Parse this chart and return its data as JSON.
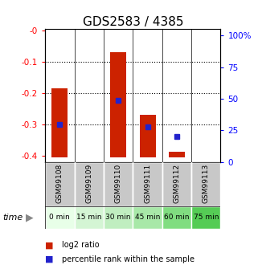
{
  "title": "GDS2583 / 4385",
  "samples": [
    "GSM99108",
    "GSM99109",
    "GSM99110",
    "GSM99111",
    "GSM99112",
    "GSM99113"
  ],
  "time_labels": [
    "0 min",
    "15 min",
    "30 min",
    "45 min",
    "60 min",
    "75 min"
  ],
  "log2_ratio_top": [
    -0.185,
    null,
    -0.068,
    -0.27,
    -0.388,
    null
  ],
  "log2_ratio_bottom": [
    -0.405,
    null,
    -0.405,
    -0.405,
    -0.405,
    null
  ],
  "percentile_rank": [
    30.0,
    null,
    49.0,
    28.0,
    20.0,
    null
  ],
  "ylim_left": [
    -0.42,
    0.005
  ],
  "ylim_right": [
    0,
    105
  ],
  "left_ticks": [
    0.0,
    -0.1,
    -0.2,
    -0.3,
    -0.4
  ],
  "left_tick_labels": [
    "-0",
    "-0.1",
    "-0.2",
    "-0.3",
    "-0.4"
  ],
  "right_ticks": [
    0,
    25,
    50,
    75,
    100
  ],
  "right_tick_labels": [
    "0",
    "25",
    "50",
    "75",
    "100%"
  ],
  "bar_color": "#cc2200",
  "square_color": "#2222cc",
  "time_green_colors": [
    "#e8ffe8",
    "#d4f5d4",
    "#c0eec0",
    "#a8e8a8",
    "#80dd80",
    "#55cc55"
  ],
  "sample_gray": "#c8c8c8",
  "legend_log2": "log2 ratio",
  "legend_pct": "percentile rank within the sample",
  "title_fontsize": 11,
  "tick_fontsize": 7.5,
  "sample_fontsize": 6.5,
  "time_fontsize": 6.5,
  "legend_fontsize": 7
}
